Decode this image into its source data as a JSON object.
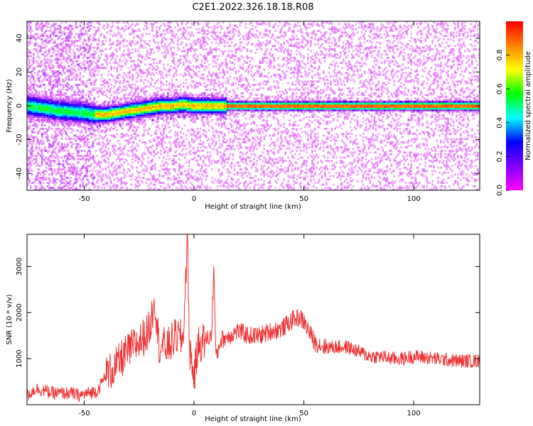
{
  "title": "C2E1.2022.326.18.18.R08",
  "chart_data": [
    {
      "type": "heatmap",
      "xlabel": "Height of straight line (km)",
      "ylabel": "Frequency (Hz)",
      "xlim": [
        -76,
        130
      ],
      "ylim": [
        -50,
        50
      ],
      "xticks": [
        -50,
        0,
        50,
        100
      ],
      "yticks": [
        -40,
        -20,
        0,
        20,
        40
      ],
      "colorbar": {
        "label": "Normalized spectral amplitude",
        "range": [
          0.0,
          1.0
        ],
        "ticks": [
          0.0,
          0.2,
          0.4,
          0.6,
          0.8
        ],
        "tick_labels": [
          "0.0",
          "0.2",
          "0.4",
          "0.6",
          "0.8"
        ],
        "colormap": [
          "#ff00ff",
          "#8000ff",
          "#0000ff",
          "#00ffff",
          "#00ff00",
          "#ffff00",
          "#ff8000",
          "#ff0000"
        ]
      },
      "ridge": {
        "x": [
          -76,
          -70,
          -60,
          -50,
          -45,
          -40,
          -35,
          -30,
          -25,
          -20,
          -15,
          -10,
          -5,
          0,
          5,
          10,
          15,
          20,
          130
        ],
        "y": [
          0,
          -1,
          -3,
          -4,
          -5,
          -5,
          -4,
          -3,
          -2,
          -1,
          0,
          0,
          1,
          0,
          0,
          0,
          0,
          0,
          0
        ]
      },
      "noise_region_x": [
        -76,
        -45
      ]
    },
    {
      "type": "line",
      "xlabel": "Height of straight line (km)",
      "ylabel": "SNR (10 * v/v)",
      "xlim": [
        -76,
        130
      ],
      "ylim": [
        0,
        3700
      ],
      "xticks": [
        -50,
        0,
        50,
        100
      ],
      "yticks": [
        1000,
        2000,
        3000
      ],
      "line_color": "#ee3333",
      "series": [
        {
          "x": [
            -76,
            -72,
            -68,
            -64,
            -60,
            -56,
            -52,
            -48,
            -44,
            -40,
            -36,
            -32,
            -28,
            -24,
            -20,
            -18,
            -16,
            -12,
            -8,
            -5,
            -3,
            -2,
            0,
            2,
            5,
            8,
            9,
            10,
            12,
            16,
            20,
            25,
            30,
            35,
            40,
            45,
            48,
            50,
            55,
            60,
            65,
            70,
            75,
            80,
            85,
            90,
            95,
            100,
            110,
            120,
            130
          ],
          "y": [
            200,
            350,
            300,
            250,
            250,
            250,
            200,
            250,
            300,
            650,
            800,
            1050,
            1250,
            1400,
            1650,
            2400,
            1300,
            1250,
            1500,
            1400,
            3600,
            1200,
            600,
            1300,
            1400,
            1500,
            3000,
            1000,
            1400,
            1500,
            1600,
            1500,
            1500,
            1600,
            1650,
            1850,
            1900,
            1800,
            1350,
            1250,
            1250,
            1250,
            1150,
            1050,
            1050,
            1000,
            1000,
            1050,
            1000,
            950,
            950
          ]
        }
      ]
    }
  ]
}
